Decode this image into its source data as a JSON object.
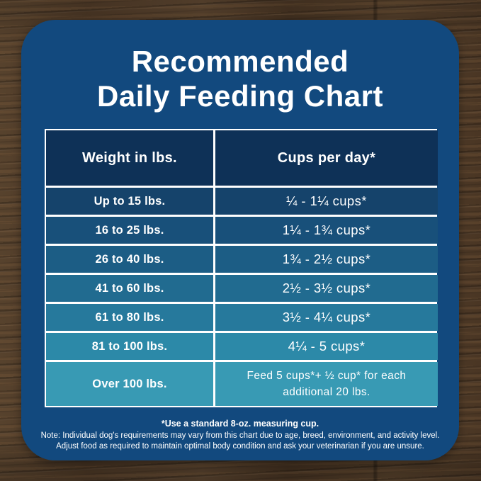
{
  "card": {
    "title_line1": "Recommended",
    "title_line2": "Daily Feeding Chart",
    "background_color": "#12497E"
  },
  "table": {
    "headers": [
      "Weight in lbs.",
      "Cups per day*"
    ],
    "header_color": "#0E3157",
    "border_color": "#FFFFFF",
    "text_color": "#FFFFFF",
    "rows": [
      {
        "weight": "Up to 15 lbs.",
        "cups": "¼ - 1¼ cups*",
        "color": "#15436B"
      },
      {
        "weight": "16 to 25 lbs.",
        "cups": "1¼ - 1¾  cups*",
        "color": "#18507A"
      },
      {
        "weight": "26 to 40 lbs.",
        "cups": "1¾ - 2½ cups*",
        "color": "#1C5D85"
      },
      {
        "weight": "41 to 60 lbs.",
        "cups": "2½ - 3½ cups*",
        "color": "#216B90"
      },
      {
        "weight": "61 to 80 lbs.",
        "cups": "3½ - 4¼ cups*",
        "color": "#26799C"
      },
      {
        "weight": "81 to 100 lbs.",
        "cups": "4¼ - 5 cups*",
        "color": "#2C89A8"
      },
      {
        "weight": "Over 100 lbs.",
        "cups": "Feed 5 cups*+ ½ cup* for each additional 20 lbs.",
        "color": "#389AB4"
      }
    ]
  },
  "footnotes": {
    "measuring_cup": "*Use a standard 8-oz. measuring cup.",
    "note_line1": "Note: Individual dog's requirements may vary from this chart due to age, breed, environment, and activity level.",
    "note_line2": "Adjust food as required to maintain optimal body condition and ask your veterinarian if you are unsure."
  },
  "chart_data": {
    "type": "table",
    "title": "Recommended Daily Feeding Chart",
    "columns": [
      "Weight in lbs.",
      "Cups per day*"
    ],
    "rows": [
      [
        "Up to 15 lbs.",
        "¼ - 1¼ cups*"
      ],
      [
        "16 to 25 lbs.",
        "1¼ - 1¾ cups*"
      ],
      [
        "26 to 40 lbs.",
        "1¾ - 2½ cups*"
      ],
      [
        "41 to 60 lbs.",
        "2½ - 3½ cups*"
      ],
      [
        "61 to 80 lbs.",
        "3½ - 4¼ cups*"
      ],
      [
        "81 to 100 lbs.",
        "4¼ - 5 cups*"
      ],
      [
        "Over 100 lbs.",
        "Feed 5 cups*+ ½ cup* for each additional 20 lbs."
      ]
    ],
    "footnote": "*Use a standard 8-oz. measuring cup."
  }
}
